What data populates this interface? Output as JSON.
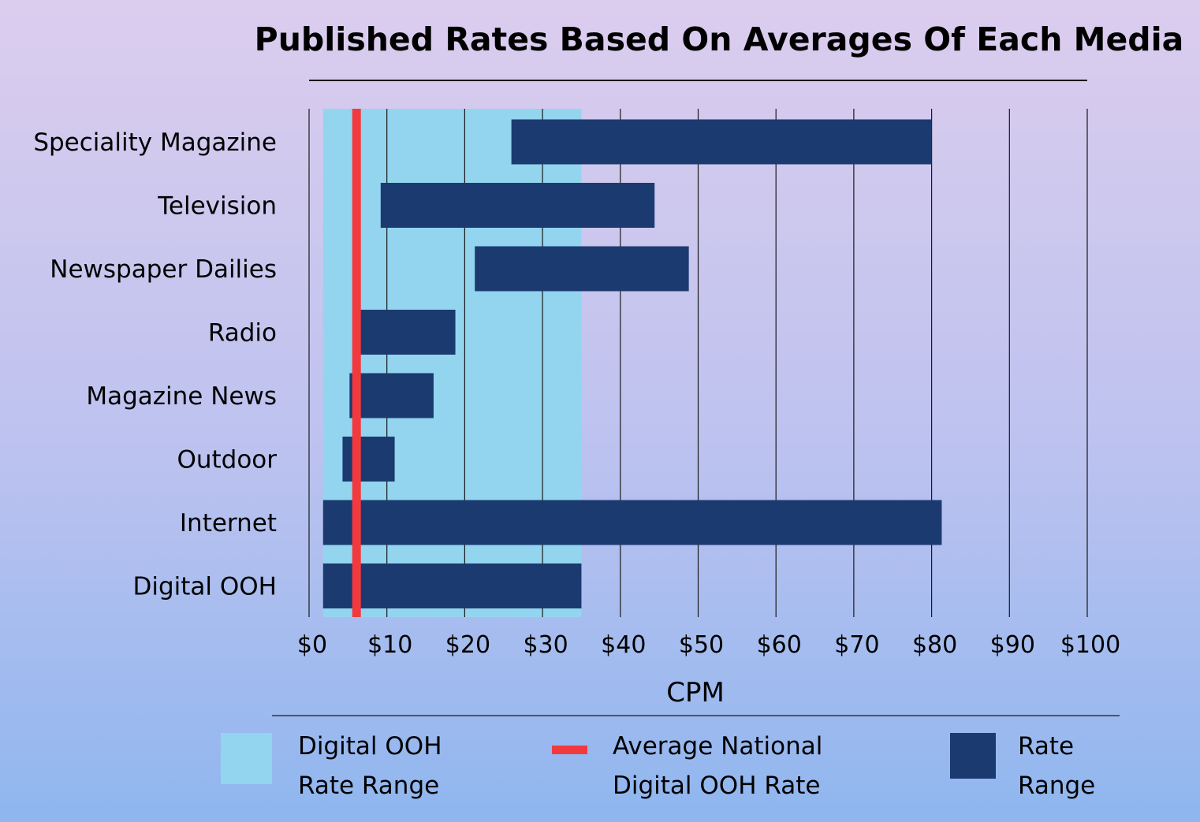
{
  "chart_data": {
    "type": "bar",
    "orientation": "horizontal",
    "title": "Published Rates Based On Averages Of Each Media",
    "xlabel": "CPM",
    "ylabel": "",
    "xlim": [
      0,
      100
    ],
    "x_ticks": [
      0,
      10,
      20,
      30,
      40,
      50,
      60,
      70,
      80,
      90,
      100
    ],
    "x_tick_labels": [
      "$0",
      "$10",
      "$20",
      "$30",
      "$40",
      "$50",
      "$60",
      "$70",
      "$80",
      "$90",
      "$100"
    ],
    "grid": "vertical",
    "categories": [
      "Speciality Magazine",
      "Television",
      "Newspaper Dailies",
      "Radio",
      "Magazine News",
      "Outdoor",
      "Internet",
      "Digital OOH"
    ],
    "series": [
      {
        "name": "Rate Range",
        "color": "#1b3a70",
        "ranges": [
          [
            26,
            80
          ],
          [
            9.2,
            44.4
          ],
          [
            21.3,
            48.8
          ],
          [
            6.5,
            18.8
          ],
          [
            5.2,
            16
          ],
          [
            4.3,
            11
          ],
          [
            1.8,
            81.3
          ],
          [
            1.8,
            35
          ]
        ]
      }
    ],
    "highlight_band": {
      "name": "Digital OOH Rate Range",
      "from": 1.8,
      "to": 35,
      "color": "#93d5ef"
    },
    "reference_line": {
      "name": "Average National Digital OOH Rate",
      "value": 6.1,
      "color": "#f23a3e"
    },
    "legend": {
      "placement": "bottom",
      "items": [
        {
          "lines": [
            "Digital OOH",
            "Rate Range"
          ],
          "color": "#93d5ef",
          "symbol": "square"
        },
        {
          "lines": [
            "Average National",
            "Digital OOH Rate"
          ],
          "color": "#f23a3e",
          "symbol": "line"
        },
        {
          "lines": [
            "Rate",
            "Range"
          ],
          "color": "#1b3a70",
          "symbol": "square"
        }
      ]
    }
  }
}
